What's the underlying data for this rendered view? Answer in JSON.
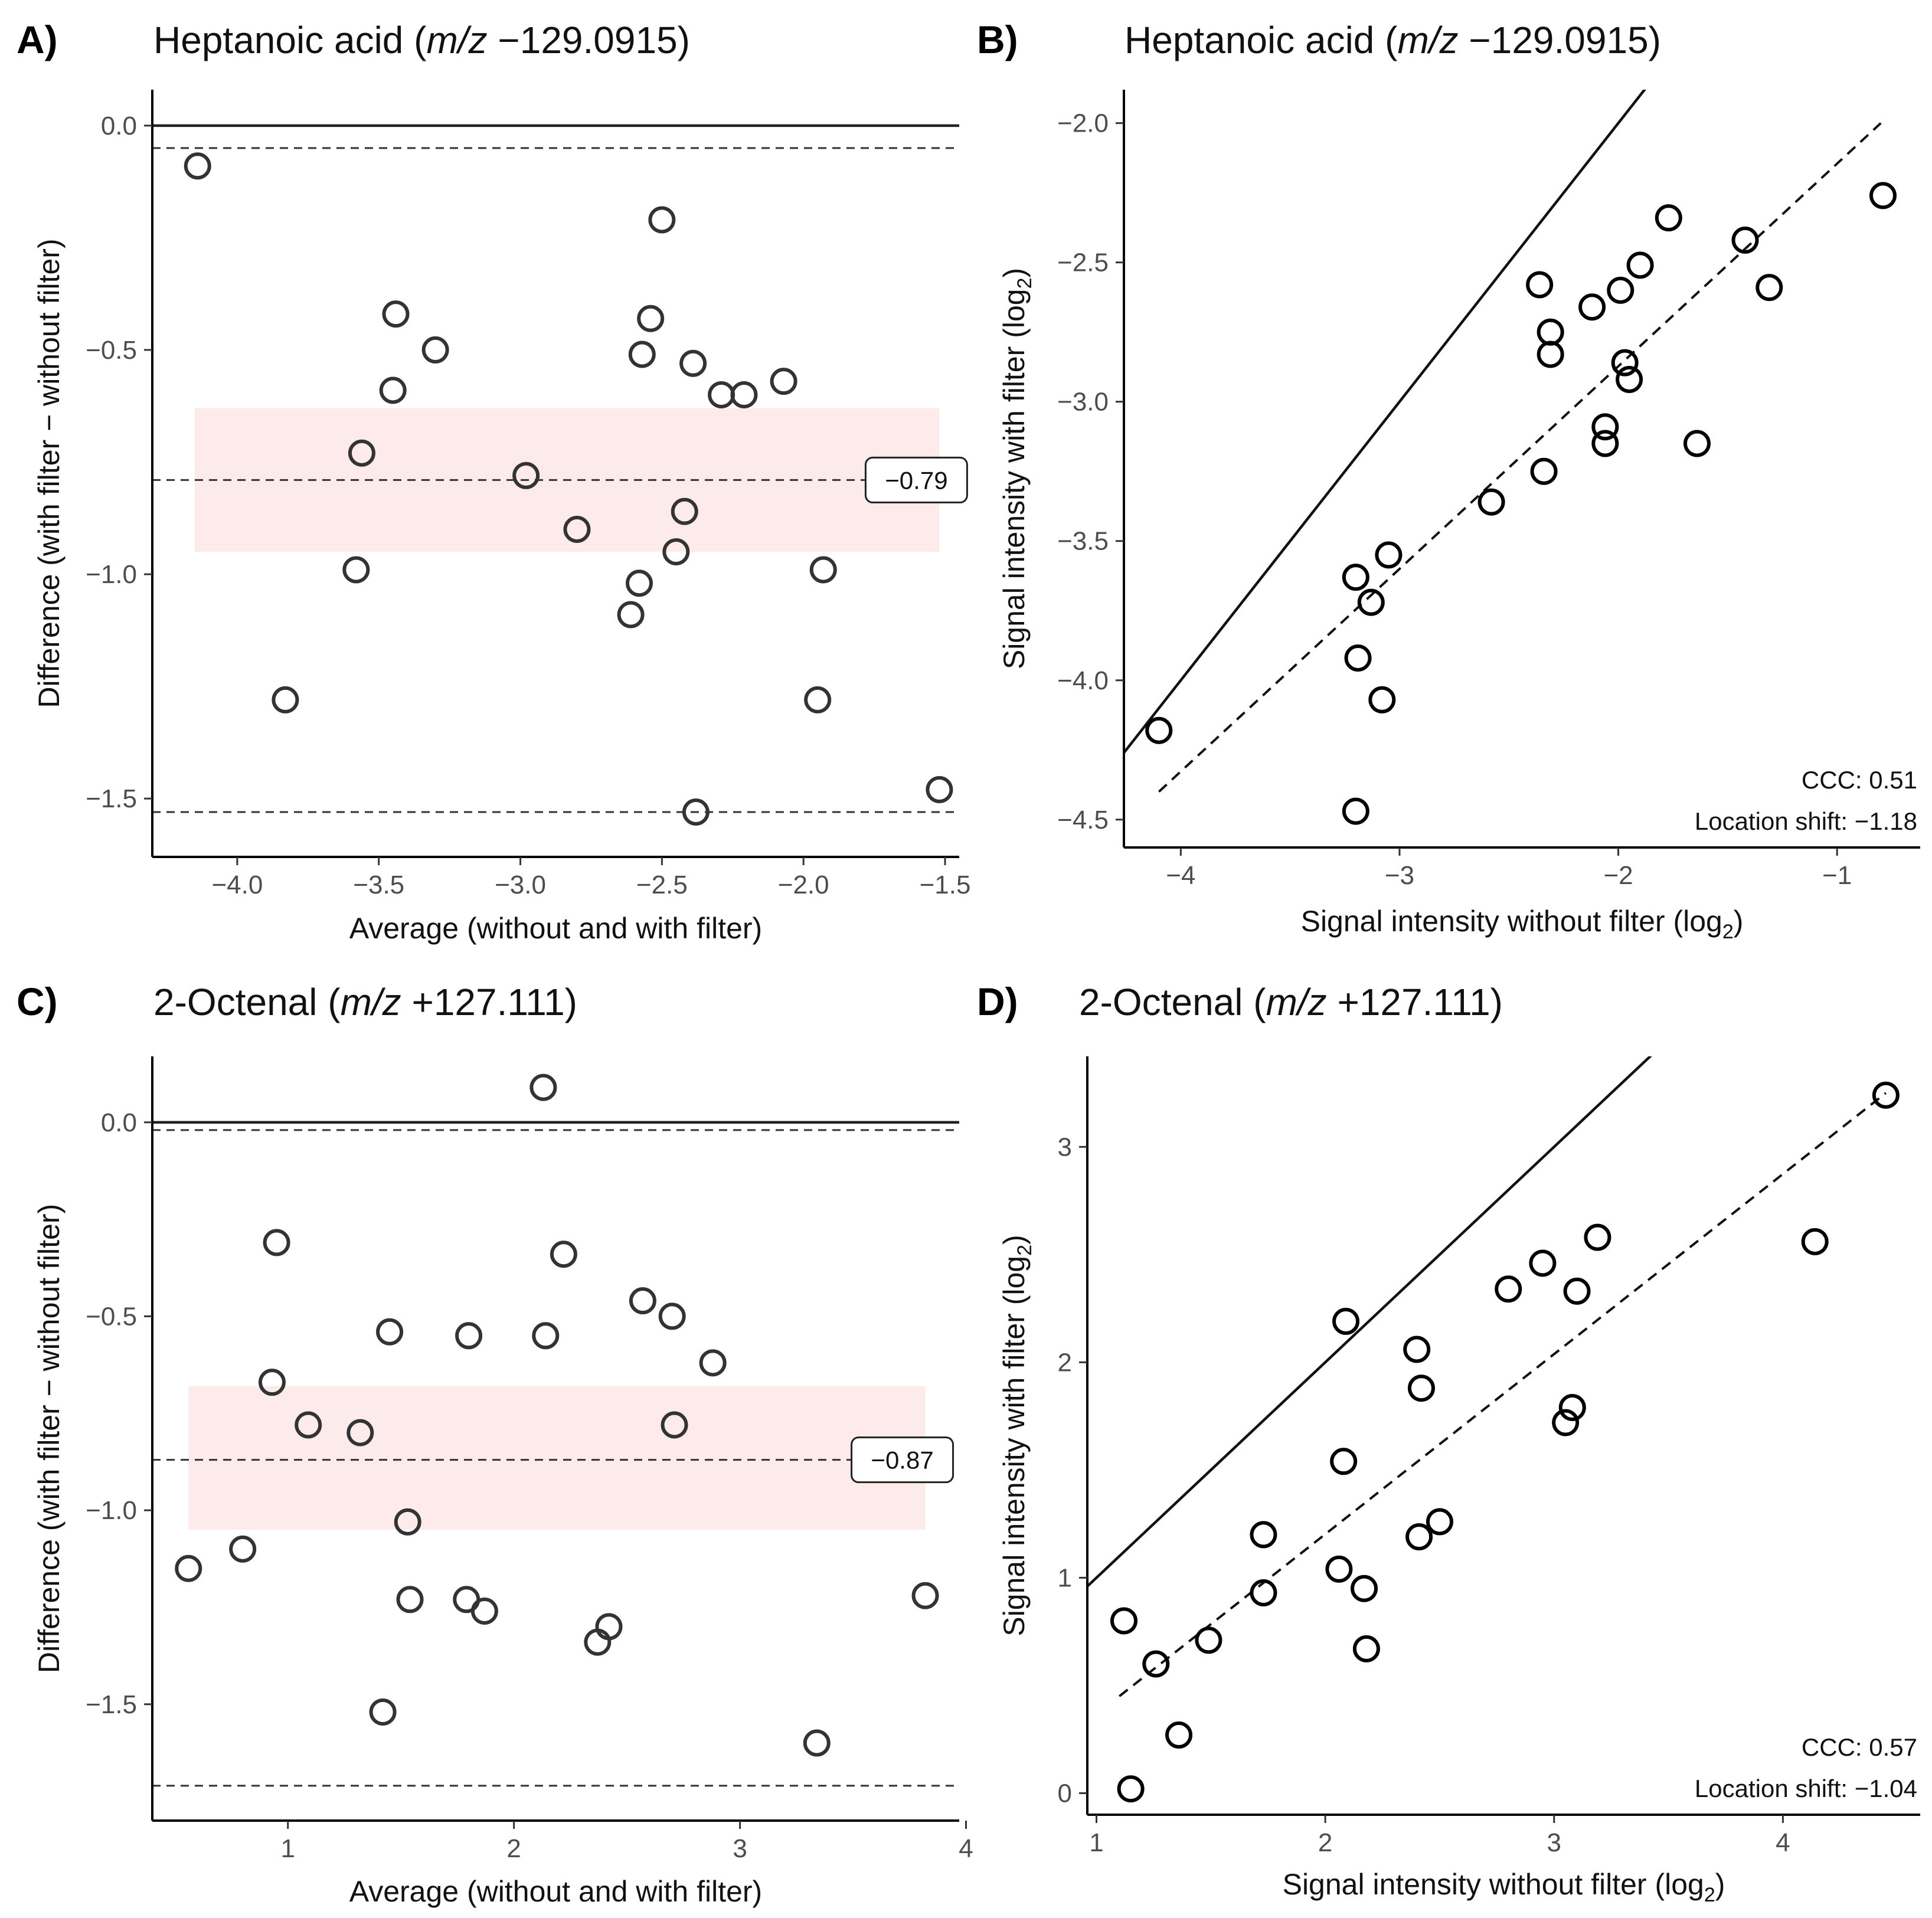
{
  "chart_data": [
    {
      "id": "A",
      "type": "scatter",
      "kind": "bland-altman",
      "panel_label": "A)",
      "title_prefix": "Heptanoic acid (",
      "title_mz": "m/z",
      "title_suffix": " −129.0915)",
      "xlabel": "Average (without and with filter)",
      "ylabel": "Difference (with filter − without filter)",
      "xlim": [
        -4.3,
        -1.45
      ],
      "ylim": [
        -1.63,
        0.08
      ],
      "xticks": [
        -4.0,
        -3.5,
        -3.0,
        -2.5,
        -2.0,
        -1.5
      ],
      "xtick_labels": [
        "−4.0",
        "−3.5",
        "−3.0",
        "−2.5",
        "−2.0",
        "−1.5"
      ],
      "yticks": [
        0.0,
        -0.5,
        -1.0,
        -1.5
      ],
      "ytick_labels": [
        "0.0",
        "−0.5",
        "−1.0",
        "−1.5"
      ],
      "zero_line": 0.0,
      "mean_diff": -0.79,
      "mean_label": "−0.79",
      "upper_loa": -0.05,
      "lower_loa": -1.53,
      "ci_band": [
        -0.63,
        -0.95
      ],
      "band_x": [
        -4.15,
        -1.52
      ],
      "band_color": "#fdeaea",
      "points": [
        {
          "x": -4.14,
          "y": -0.09
        },
        {
          "x": -3.83,
          "y": -1.28
        },
        {
          "x": -3.58,
          "y": -0.99
        },
        {
          "x": -3.56,
          "y": -0.73
        },
        {
          "x": -3.45,
          "y": -0.59
        },
        {
          "x": -3.44,
          "y": -0.42
        },
        {
          "x": -3.3,
          "y": -0.5
        },
        {
          "x": -2.98,
          "y": -0.78
        },
        {
          "x": -2.8,
          "y": -0.9
        },
        {
          "x": -2.61,
          "y": -1.09
        },
        {
          "x": -2.58,
          "y": -1.02
        },
        {
          "x": -2.57,
          "y": -0.51
        },
        {
          "x": -2.54,
          "y": -0.43
        },
        {
          "x": -2.5,
          "y": -0.21
        },
        {
          "x": -2.45,
          "y": -0.95
        },
        {
          "x": -2.42,
          "y": -0.86
        },
        {
          "x": -2.39,
          "y": -0.53
        },
        {
          "x": -2.38,
          "y": -1.53
        },
        {
          "x": -2.29,
          "y": -0.6
        },
        {
          "x": -2.21,
          "y": -0.6
        },
        {
          "x": -2.07,
          "y": -0.57
        },
        {
          "x": -1.95,
          "y": -1.28
        },
        {
          "x": -1.93,
          "y": -0.99
        },
        {
          "x": -1.52,
          "y": -1.48
        }
      ]
    },
    {
      "id": "B",
      "type": "scatter",
      "kind": "correlation",
      "panel_label": "B)",
      "title_prefix": "Heptanoic acid (",
      "title_mz": "m/z",
      "title_suffix": " −129.0915)",
      "xlabel_main": "Signal intensity without filter (log",
      "xlabel_sub": "2",
      "xlabel_end": ")",
      "ylabel_main": "Signal intensity with filter (log",
      "ylabel_sub": "2",
      "ylabel_end": ")",
      "xlim": [
        -4.26,
        -0.62
      ],
      "ylim": [
        -4.6,
        -1.88
      ],
      "xticks": [
        -4,
        -3,
        -2,
        -1
      ],
      "xtick_labels": [
        "−4",
        "−3",
        "−2",
        "−1"
      ],
      "yticks": [
        -2.0,
        -2.5,
        -3.0,
        -3.5,
        -4.0,
        -4.5
      ],
      "ytick_labels": [
        "−2.0",
        "−2.5",
        "−3.0",
        "−3.5",
        "−4.0",
        "−4.5"
      ],
      "identity_line": true,
      "fit_line": {
        "x0": -4.1,
        "y0": -4.4,
        "x1": -0.8,
        "y1": -2.0
      },
      "ccc_label": "CCC: 0.51",
      "shift_label": "Location shift: −1.18",
      "points": [
        {
          "x": -4.1,
          "y": -4.18
        },
        {
          "x": -3.2,
          "y": -4.47
        },
        {
          "x": -3.2,
          "y": -3.63
        },
        {
          "x": -3.19,
          "y": -3.92
        },
        {
          "x": -3.13,
          "y": -3.72
        },
        {
          "x": -3.08,
          "y": -4.07
        },
        {
          "x": -3.05,
          "y": -3.55
        },
        {
          "x": -2.58,
          "y": -3.36
        },
        {
          "x": -2.36,
          "y": -2.58
        },
        {
          "x": -2.34,
          "y": -3.25
        },
        {
          "x": -2.31,
          "y": -2.75
        },
        {
          "x": -2.31,
          "y": -2.83
        },
        {
          "x": -2.12,
          "y": -2.66
        },
        {
          "x": -2.06,
          "y": -3.09
        },
        {
          "x": -2.06,
          "y": -3.15
        },
        {
          "x": -1.99,
          "y": -2.6
        },
        {
          "x": -1.97,
          "y": -2.86
        },
        {
          "x": -1.95,
          "y": -2.92
        },
        {
          "x": -1.9,
          "y": -2.51
        },
        {
          "x": -1.77,
          "y": -2.34
        },
        {
          "x": -1.64,
          "y": -3.15
        },
        {
          "x": -1.42,
          "y": -2.42
        },
        {
          "x": -1.31,
          "y": -2.59
        },
        {
          "x": -0.79,
          "y": -2.26
        }
      ]
    },
    {
      "id": "C",
      "type": "scatter",
      "kind": "bland-altman",
      "panel_label": "C)",
      "title_prefix": "2-Octenal (",
      "title_mz": "m/z",
      "title_suffix": " +127.111)",
      "xlabel": "Average (without and with filter)",
      "ylabel": "Difference (with filter − without filter)",
      "xlim": [
        0.4,
        3.97
      ],
      "ylim": [
        -1.8,
        0.17
      ],
      "xticks": [
        1,
        2,
        3,
        4
      ],
      "xtick_labels": [
        "1",
        "2",
        "3",
        "4"
      ],
      "yticks": [
        0.0,
        -0.5,
        -1.0,
        -1.5
      ],
      "ytick_labels": [
        "0.0",
        "−0.5",
        "−1.0",
        "−1.5"
      ],
      "zero_line": 0.0,
      "mean_diff": -0.87,
      "mean_label": "−0.87",
      "upper_loa": -0.02,
      "lower_loa": -1.71,
      "ci_band": [
        -0.68,
        -1.05
      ],
      "band_x": [
        0.56,
        3.82
      ],
      "band_color": "#fdeaea",
      "points": [
        {
          "x": 0.56,
          "y": -1.15
        },
        {
          "x": 0.8,
          "y": -1.1
        },
        {
          "x": 0.93,
          "y": -0.67
        },
        {
          "x": 0.95,
          "y": -0.31
        },
        {
          "x": 1.09,
          "y": -0.78
        },
        {
          "x": 1.32,
          "y": -0.8
        },
        {
          "x": 1.42,
          "y": -1.52
        },
        {
          "x": 1.45,
          "y": -0.54
        },
        {
          "x": 1.53,
          "y": -1.03
        },
        {
          "x": 1.54,
          "y": -1.23
        },
        {
          "x": 1.79,
          "y": -1.23
        },
        {
          "x": 1.8,
          "y": -0.55
        },
        {
          "x": 1.87,
          "y": -1.26
        },
        {
          "x": 2.13,
          "y": 0.09
        },
        {
          "x": 2.14,
          "y": -0.55
        },
        {
          "x": 2.22,
          "y": -0.34
        },
        {
          "x": 2.37,
          "y": -1.34
        },
        {
          "x": 2.42,
          "y": -1.3
        },
        {
          "x": 2.57,
          "y": -0.46
        },
        {
          "x": 2.7,
          "y": -0.5
        },
        {
          "x": 2.71,
          "y": -0.78
        },
        {
          "x": 2.88,
          "y": -0.62
        },
        {
          "x": 3.34,
          "y": -1.6
        },
        {
          "x": 3.82,
          "y": -1.22
        }
      ]
    },
    {
      "id": "D",
      "type": "scatter",
      "kind": "correlation",
      "panel_label": "D)",
      "title_prefix": "2-Octenal (",
      "title_mz": "m/z",
      "title_suffix": " +127.111)",
      "xlabel_main": "Signal intensity without filter (log",
      "xlabel_sub": "2",
      "xlabel_end": ")",
      "ylabel_main": "Signal intensity with filter (log",
      "ylabel_sub": "2",
      "ylabel_end": ")",
      "xlim": [
        0.96,
        4.6
      ],
      "ylim": [
        -0.1,
        3.42
      ],
      "xticks": [
        1,
        2,
        3,
        4
      ],
      "xtick_labels": [
        "1",
        "2",
        "3",
        "4"
      ],
      "yticks": [
        0,
        1,
        2,
        3
      ],
      "ytick_labels": [
        "0",
        "1",
        "2",
        "3"
      ],
      "identity_line": true,
      "fit_line": {
        "x0": 1.1,
        "y0": 0.45,
        "x1": 4.45,
        "y1": 3.25
      },
      "ccc_label": "CCC: 0.57",
      "shift_label": "Location shift: −1.04",
      "points": [
        {
          "x": 1.12,
          "y": 0.8
        },
        {
          "x": 1.15,
          "y": 0.02
        },
        {
          "x": 1.26,
          "y": 0.6
        },
        {
          "x": 1.36,
          "y": 0.27
        },
        {
          "x": 1.49,
          "y": 0.71
        },
        {
          "x": 1.73,
          "y": 1.2
        },
        {
          "x": 1.73,
          "y": 0.93
        },
        {
          "x": 2.06,
          "y": 1.04
        },
        {
          "x": 2.08,
          "y": 1.54
        },
        {
          "x": 2.09,
          "y": 2.19
        },
        {
          "x": 2.17,
          "y": 0.95
        },
        {
          "x": 2.18,
          "y": 0.67
        },
        {
          "x": 2.4,
          "y": 2.06
        },
        {
          "x": 2.41,
          "y": 1.19
        },
        {
          "x": 2.42,
          "y": 1.88
        },
        {
          "x": 2.5,
          "y": 1.26
        },
        {
          "x": 2.8,
          "y": 2.34
        },
        {
          "x": 2.95,
          "y": 2.46
        },
        {
          "x": 3.05,
          "y": 1.72
        },
        {
          "x": 3.08,
          "y": 1.79
        },
        {
          "x": 3.1,
          "y": 2.33
        },
        {
          "x": 3.19,
          "y": 2.58
        },
        {
          "x": 4.14,
          "y": 2.56
        },
        {
          "x": 4.45,
          "y": 3.24
        }
      ]
    }
  ]
}
